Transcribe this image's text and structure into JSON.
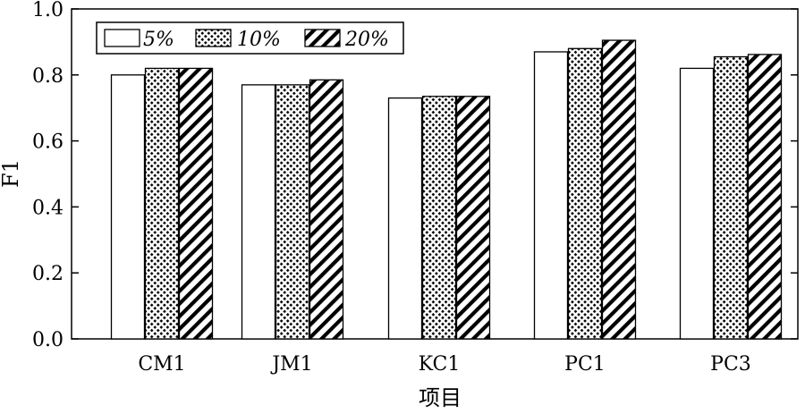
{
  "chart_data": {
    "type": "bar",
    "xlabel": "项目",
    "ylabel": "F1",
    "ylim": [
      0,
      1.0
    ],
    "yticks": [
      "0.0",
      "0.2",
      "0.4",
      "0.6",
      "0.8",
      "1.0"
    ],
    "categories": [
      "CM1",
      "JM1",
      "KC1",
      "PC1",
      "PC3"
    ],
    "series": [
      {
        "name": "5%",
        "pattern": "plain",
        "values": [
          0.8,
          0.77,
          0.73,
          0.87,
          0.82
        ]
      },
      {
        "name": "10%",
        "pattern": "dots",
        "values": [
          0.82,
          0.77,
          0.735,
          0.88,
          0.855
        ]
      },
      {
        "name": "20%",
        "pattern": "diagonal",
        "values": [
          0.82,
          0.785,
          0.735,
          0.905,
          0.862
        ]
      }
    ],
    "legend_position": "top-left",
    "grid": false
  }
}
